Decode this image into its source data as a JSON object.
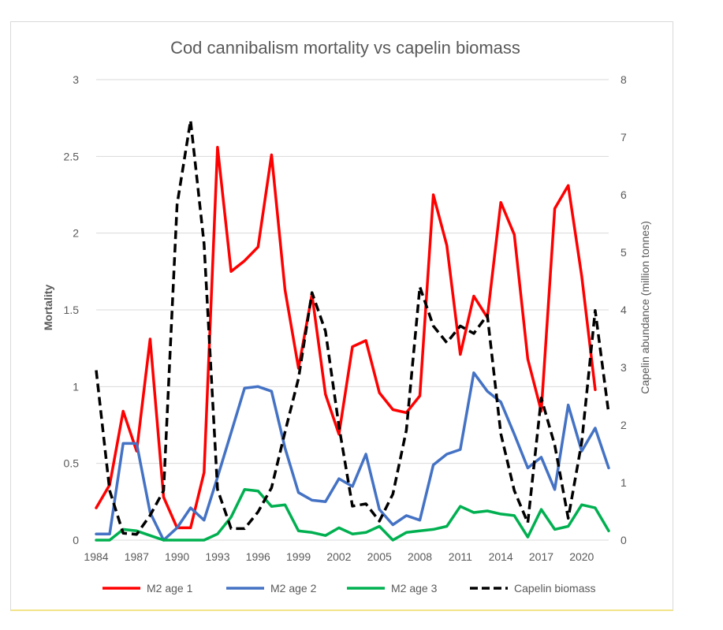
{
  "chart_data": {
    "type": "line",
    "title": "Cod cannibalism mortality vs capelin biomass",
    "xlabel": "",
    "ylabel": "Mortality",
    "y2label": "Capelin abundance (million tonnes)",
    "ylim": [
      0,
      3
    ],
    "y2lim": [
      0,
      8
    ],
    "yticks": [
      "0",
      "0.5",
      "1",
      "1.5",
      "2",
      "2.5",
      "3"
    ],
    "y2ticks": [
      "0",
      "1",
      "2",
      "3",
      "4",
      "5",
      "6",
      "7",
      "8"
    ],
    "xtick_labels": [
      "1984",
      "1987",
      "1990",
      "1993",
      "1996",
      "1999",
      "2002",
      "2005",
      "2008",
      "2011",
      "2014",
      "2017",
      "2020"
    ],
    "x": [
      1984,
      1985,
      1986,
      1987,
      1988,
      1989,
      1990,
      1991,
      1992,
      1993,
      1994,
      1995,
      1996,
      1997,
      1998,
      1999,
      2000,
      2001,
      2002,
      2003,
      2004,
      2005,
      2006,
      2007,
      2008,
      2009,
      2010,
      2011,
      2012,
      2013,
      2014,
      2015,
      2016,
      2017,
      2018,
      2019,
      2020,
      2021,
      2022
    ],
    "legend_position": "bottom",
    "grid": true,
    "series": [
      {
        "name": "M2 age 1",
        "axis": "left",
        "color": "#ff0000",
        "style": "solid",
        "values": [
          0.21,
          0.36,
          0.84,
          0.58,
          1.31,
          0.28,
          0.08,
          0.08,
          0.44,
          2.56,
          1.75,
          1.82,
          1.91,
          2.51,
          1.63,
          1.12,
          1.6,
          0.95,
          0.69,
          1.26,
          1.3,
          0.96,
          0.85,
          0.83,
          0.94,
          2.25,
          1.92,
          1.21,
          1.59,
          1.45,
          2.2,
          1.99,
          1.18,
          0.84,
          2.16,
          2.31,
          1.72,
          0.98,
          null
        ]
      },
      {
        "name": "M2 age 2",
        "axis": "left",
        "color": "#4472c4",
        "style": "solid",
        "values": [
          0.04,
          0.04,
          0.63,
          0.63,
          0.18,
          0.0,
          0.08,
          0.21,
          0.13,
          0.41,
          0.7,
          0.99,
          1.0,
          0.97,
          0.6,
          0.31,
          0.26,
          0.25,
          0.4,
          0.35,
          0.56,
          0.2,
          0.1,
          0.16,
          0.13,
          0.49,
          0.56,
          0.59,
          1.09,
          0.97,
          0.9,
          0.69,
          0.47,
          0.54,
          0.33,
          0.88,
          0.58,
          0.73,
          0.47
        ]
      },
      {
        "name": "M2 age 3",
        "axis": "left",
        "color": "#00b050",
        "style": "solid",
        "values": [
          0.0,
          0.0,
          0.07,
          0.06,
          0.03,
          0.0,
          0.0,
          0.0,
          0.0,
          0.04,
          0.15,
          0.33,
          0.32,
          0.22,
          0.23,
          0.06,
          0.05,
          0.03,
          0.08,
          0.04,
          0.05,
          0.09,
          0.0,
          0.05,
          0.06,
          0.07,
          0.09,
          0.22,
          0.18,
          0.19,
          0.17,
          0.16,
          0.02,
          0.2,
          0.07,
          0.09,
          0.23,
          0.21,
          0.06
        ]
      },
      {
        "name": "Capelin biomass",
        "axis": "right",
        "color": "#000000",
        "style": "dashed",
        "values": [
          2.95,
          0.86,
          0.12,
          0.1,
          0.43,
          0.86,
          5.83,
          7.29,
          5.15,
          0.88,
          0.2,
          0.2,
          0.49,
          0.91,
          1.88,
          2.81,
          4.3,
          3.63,
          1.98,
          0.59,
          0.63,
          0.33,
          0.8,
          1.91,
          4.4,
          3.72,
          3.43,
          3.72,
          3.59,
          3.91,
          1.85,
          0.86,
          0.3,
          2.47,
          1.65,
          0.38,
          1.7,
          3.99,
          2.2
        ]
      }
    ]
  }
}
